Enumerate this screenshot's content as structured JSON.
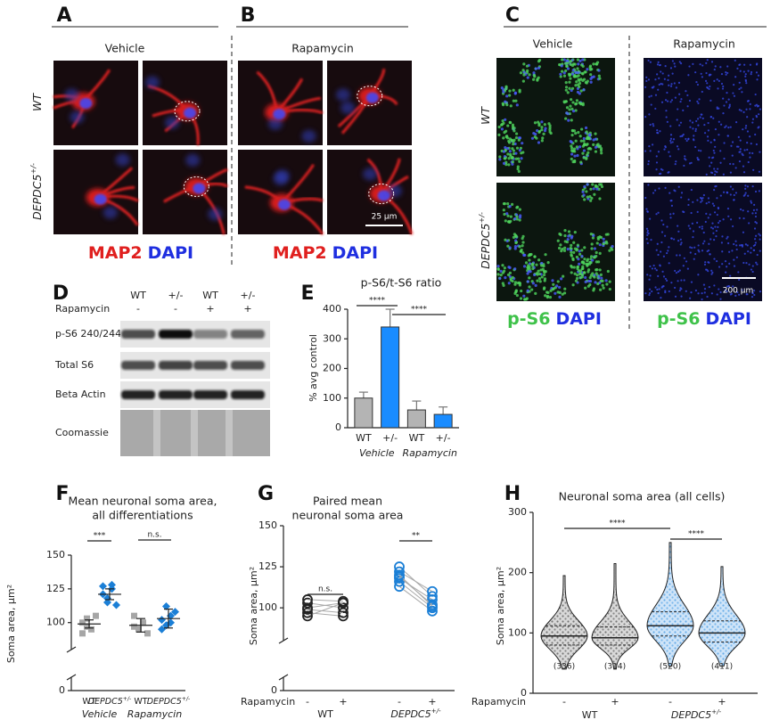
{
  "figure": {
    "panel_a": {
      "letter": "A",
      "condition": "Vehicle",
      "row_labels": [
        {
          "name": "WT"
        },
        {
          "name": "DEPDC5",
          "sup": "+/-"
        }
      ],
      "stain_1": "MAP2",
      "stain_2": "DAPI"
    },
    "panel_b": {
      "letter": "B",
      "condition": "Rapamycin",
      "scale_bar": "25 µm",
      "stain_1": "MAP2",
      "stain_2": "DAPI"
    },
    "panel_c": {
      "letter": "C",
      "conditions": [
        "Vehicle",
        "Rapamycin"
      ],
      "row_labels": [
        {
          "name": "WT"
        },
        {
          "name": "DEPDC5",
          "sup": "+/-"
        }
      ],
      "scale_bar": "200 µm",
      "stain_1": "p-S6",
      "stain_2": "DAPI"
    },
    "panel_d": {
      "letter": "D",
      "lanes": [
        "WT",
        "+/-",
        "WT",
        "+/-"
      ],
      "treatment_label": "Rapamycin",
      "treatment": [
        "-",
        "-",
        "+",
        "+"
      ],
      "rows": [
        "p-S6 240/244",
        "Total S6",
        "Beta Actin",
        "Coomassie"
      ]
    }
  },
  "chart_data": [
    {
      "type": "bar",
      "panel": "E",
      "title": "p-S6/t-S6 ratio",
      "y_label": "% avg control",
      "categories": [
        "WT",
        "+/-",
        "WT",
        "+/-"
      ],
      "groups": [
        "Vehicle",
        "Rapamycin"
      ],
      "values": [
        100,
        340,
        60,
        45
      ],
      "errors": [
        20,
        60,
        30,
        25
      ],
      "colors": [
        "#b4b4b4",
        "#1a8cff",
        "#b4b4b4",
        "#1a8cff"
      ],
      "ylim": [
        0,
        400
      ],
      "yticks": [
        0,
        100,
        200,
        300,
        400
      ],
      "significance": [
        "****",
        "****"
      ]
    },
    {
      "type": "strip",
      "panel": "F",
      "title": [
        "Mean neuronal soma area,",
        "all differentiations"
      ],
      "y_label": "Soma area, µm²",
      "categories": [
        {
          "name": "WT"
        },
        {
          "name": "DEPDC5",
          "sup": "+/-"
        },
        {
          "name": "WT"
        },
        {
          "name": "DEPDC5",
          "sup": "+/-"
        }
      ],
      "groups": [
        "Vehicle",
        "Rapamycin"
      ],
      "points": [
        [
          100,
          97,
          95,
          105,
          92,
          103
        ],
        [
          121,
          118,
          128,
          113,
          127,
          115,
          125
        ],
        [
          97,
          95,
          100,
          92,
          105
        ],
        [
          102,
          98,
          100,
          108,
          95,
          112,
          105
        ]
      ],
      "means": [
        99,
        121,
        98,
        103
      ],
      "sems": [
        3,
        4,
        5,
        7
      ],
      "colors": [
        "#a6a6a6",
        "#1b7fd6",
        "#a6a6a6",
        "#1b7fd6"
      ],
      "markers": [
        "square",
        "diamond",
        "square",
        "diamond"
      ],
      "ylim": [
        0,
        150
      ],
      "axis_break": [
        10,
        80
      ],
      "yticks": [
        0,
        100,
        125,
        150
      ],
      "significance": [
        "***",
        "n.s."
      ]
    },
    {
      "type": "paired",
      "panel": "G",
      "title": [
        "Paired mean",
        "neuronal soma area"
      ],
      "y_label": "Soma area, µm²",
      "treatment_label": "Rapamycin",
      "categories": [
        "-",
        "+",
        "-",
        "+"
      ],
      "groups": [
        {
          "name": "WT"
        },
        {
          "name": "DEPDC5",
          "sup": "+/-"
        }
      ],
      "pairs": [
        {
          "color": "#222222",
          "before": [
            97,
            100,
            103,
            95,
            105,
            99
          ],
          "after": [
            95,
            103,
            100,
            103,
            104,
            97
          ]
        },
        {
          "color": "#1b7fd6",
          "before": [
            125,
            122,
            118,
            116,
            119,
            113,
            120
          ],
          "after": [
            107,
            110,
            105,
            100,
            102,
            98,
            101
          ]
        }
      ],
      "ylim": [
        0,
        150
      ],
      "axis_break": [
        10,
        80
      ],
      "yticks": [
        0,
        100,
        125,
        150
      ],
      "significance": [
        "n.s.",
        "**"
      ]
    },
    {
      "type": "violin",
      "panel": "H",
      "title": "Neuronal soma area (all cells)",
      "y_label": "Soma area, µm²",
      "treatment_label": "Rapamycin",
      "categories": [
        "-",
        "+",
        "-",
        "+"
      ],
      "groups": [
        {
          "name": "WT"
        },
        {
          "name": "DEPDC5",
          "sup": "+/-"
        }
      ],
      "violins": [
        {
          "color": "gray",
          "min": 40,
          "q1": 80,
          "median": 95,
          "q3": 112,
          "max": 195
        },
        {
          "color": "gray",
          "min": 40,
          "q1": 80,
          "median": 92,
          "q3": 110,
          "max": 215
        },
        {
          "color": "blue",
          "min": 45,
          "q1": 95,
          "median": 112,
          "q3": 135,
          "max": 250
        },
        {
          "color": "blue",
          "min": 45,
          "q1": 85,
          "median": 100,
          "q3": 120,
          "max": 210
        }
      ],
      "n_labels": [
        "(336)",
        "(314)",
        "(520)",
        "(411)"
      ],
      "ylim": [
        0,
        300
      ],
      "yticks": [
        0,
        100,
        200,
        300
      ],
      "significance": [
        "****",
        "****"
      ]
    }
  ]
}
